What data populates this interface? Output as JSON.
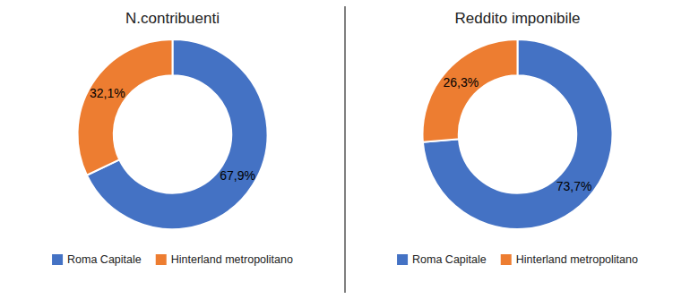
{
  "chart_data": [
    {
      "type": "pie",
      "title": "N.contribuenti",
      "categories": [
        "Roma Capitale",
        "Hinterland metropolitano"
      ],
      "values": [
        67.9,
        32.1
      ],
      "value_labels": [
        "67,9%",
        "32,1%"
      ],
      "colors": [
        "#4472C4",
        "#ED7D31"
      ],
      "data_labels": true,
      "legend": "bottom"
    },
    {
      "type": "pie",
      "title": "Reddito imponibile",
      "categories": [
        "Roma Capitale",
        "Hinterland metropolitano"
      ],
      "values": [
        73.7,
        26.3
      ],
      "value_labels": [
        "73,7%",
        "26,3%"
      ],
      "colors": [
        "#4472C4",
        "#ED7D31"
      ],
      "data_labels": true,
      "legend": "bottom"
    }
  ]
}
